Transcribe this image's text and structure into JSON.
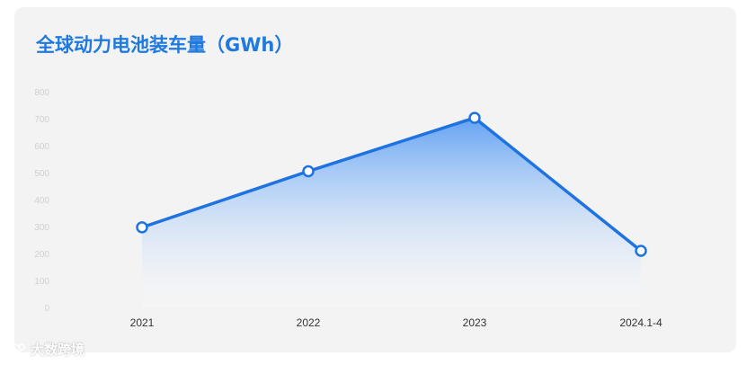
{
  "chart_data": {
    "type": "area",
    "title": "全球动力电池装车量（GWh）",
    "categories": [
      "2021",
      "2022",
      "2023",
      "2024.1-4"
    ],
    "series": [
      {
        "values": [
          297,
          505,
          703,
          210
        ]
      }
    ],
    "ylim": [
      0,
      800
    ],
    "yticks": [
      "0",
      "100",
      "200",
      "300",
      "400",
      "500",
      "600",
      "700",
      "800"
    ],
    "grid": false,
    "legend": "none",
    "colors": {
      "line": "#1f73e0",
      "fill_top": "#6aa8f3",
      "title": "#1f7ae0",
      "tick": "#d0d0d0"
    }
  },
  "watermark": {
    "text": "大数跨境"
  }
}
